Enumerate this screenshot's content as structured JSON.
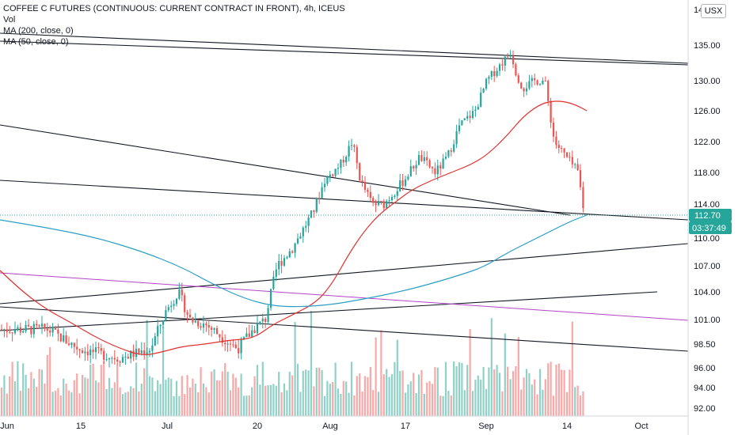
{
  "legend": {
    "title": "COFFEE C FUTURES (CONTINUOUS: CURRENT CONTRACT IN FRONT), 4h, ICEUS",
    "vol": "Vol",
    "ma200": "MA (200, close, 0)",
    "ma50": "MA (50, close, 0)"
  },
  "currency_button": "USX",
  "top_tick_partial": "14",
  "colors": {
    "up": "#26a69a",
    "down": "#ef5350",
    "vol_up": "#8fd1c7",
    "vol_down": "#f7a9a7",
    "ma50": "#e0312f",
    "ma200": "#2b9ec4",
    "purple": "#b145c4",
    "trend": "#131722",
    "price_box": "#26a69a"
  },
  "chart_data": {
    "type": "candlestick",
    "timeframe": "4h",
    "y_ticks": [
      "135.00",
      "130.00",
      "126.00",
      "122.00",
      "118.00",
      "114.00",
      "110.00",
      "107.00",
      "104.00",
      "101.00",
      "98.50",
      "96.00",
      "94.00",
      "92.00"
    ],
    "x_ticks": [
      "Jun",
      "15",
      "Jul",
      "20",
      "Aug",
      "17",
      "Sep",
      "14",
      "Oct"
    ],
    "last_price": "112.70",
    "countdown": "03:37:49"
  }
}
